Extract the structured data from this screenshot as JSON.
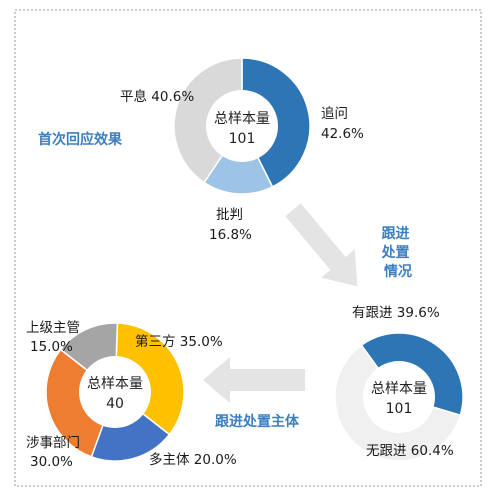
{
  "colors": {
    "blue": "#2e75b6",
    "light_blue": "#9dc3e6",
    "light_gray": "#d9d9d9",
    "yellow": "#ffc000",
    "orange": "#ed7d31",
    "gray": "#a5a5a5",
    "pale_gray": "#f0f0f0",
    "caption": "#3b7fc0",
    "arrow": "#e4e4e4"
  },
  "chart_data": [
    {
      "type": "pie",
      "donut": true,
      "center_text": [
        "总样本量",
        "101"
      ],
      "caption": "首次回应效果",
      "slices": [
        {
          "name": "追问",
          "value": 42.6,
          "label": "42.6%",
          "color": "#2e75b6"
        },
        {
          "name": "批判",
          "value": 16.8,
          "label": "16.8%",
          "color": "#9dc3e6"
        },
        {
          "name": "平息",
          "value": 40.6,
          "label": "40.6%",
          "color": "#d9d9d9"
        }
      ]
    },
    {
      "type": "pie",
      "donut": true,
      "center_text": [
        "总样本量",
        "101"
      ],
      "caption": "跟进处置情况",
      "slices": [
        {
          "name": "有跟进",
          "value": 39.6,
          "label": "39.6%",
          "color": "#2e75b6"
        },
        {
          "name": "无跟进",
          "value": 60.4,
          "label": "60.4%",
          "color": "#f0f0f0"
        }
      ]
    },
    {
      "type": "pie",
      "donut": true,
      "center_text": [
        "总样本量",
        "40"
      ],
      "caption": "跟进处置主体",
      "slices": [
        {
          "name": "第三方",
          "value": 35.0,
          "label": "35.0%",
          "color": "#ffc000"
        },
        {
          "name": "多主体",
          "value": 20.0,
          "label": "20.0%",
          "color": "#4472c4"
        },
        {
          "name": "涉事部门",
          "value": 30.0,
          "label": "30.0%",
          "color": "#ed7d31"
        },
        {
          "name": "上级主管",
          "value": 15.0,
          "label": "15.0%",
          "color": "#a5a5a5"
        }
      ]
    }
  ]
}
